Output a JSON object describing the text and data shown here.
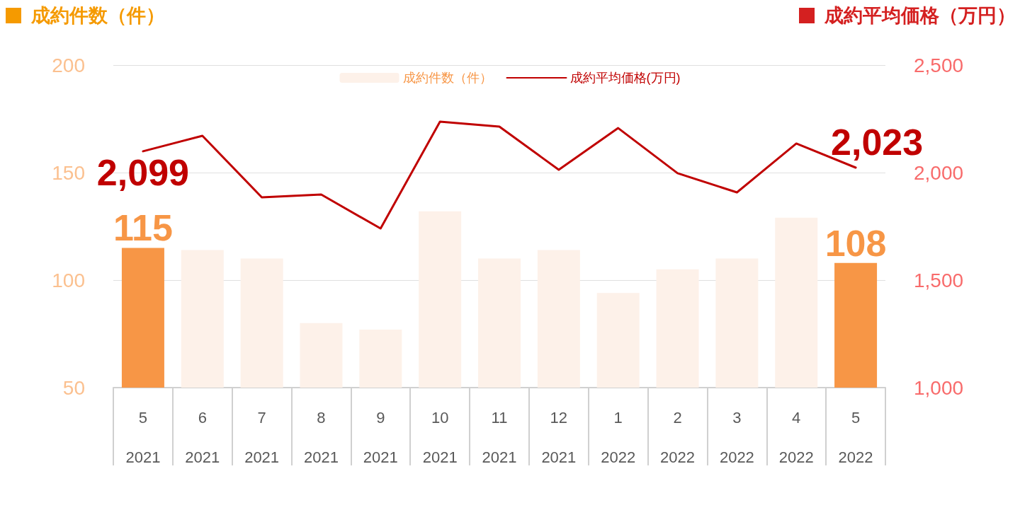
{
  "chart_data": {
    "type": "bar",
    "ylabel": "成約件数（件）",
    "y2label": "成約平均価格（万円）",
    "categories": [
      "5\n2021",
      "6\n2021",
      "7\n2021",
      "8\n2021",
      "9\n2021",
      "10\n2021",
      "11\n2021",
      "12\n2021",
      "1\n2022",
      "2\n2022",
      "3\n2022",
      "4\n2022",
      "5\n2022"
    ],
    "series": [
      {
        "name": "成約件数（件）",
        "color": "#fdf1e9",
        "colors": [
          "#f79646",
          "#fdf1e9",
          "#fdf1e9",
          "#fdf1e9",
          "#fdf1e9",
          "#fdf1e9",
          "#fdf1e9",
          "#fdf1e9",
          "#fdf1e9",
          "#fdf1e9",
          "#fdf1e9",
          "#fdf1e9",
          "#f79646"
        ],
        "values": [
          115,
          114,
          110,
          80,
          77,
          132,
          110,
          114,
          94,
          105,
          110,
          129,
          108
        ],
        "value_labels": [
          "115",
          null,
          null,
          null,
          null,
          null,
          null,
          null,
          null,
          null,
          null,
          null,
          "108"
        ]
      },
      {
        "type": "line",
        "name": "成約平均価格(万円)",
        "color": "#c00000",
        "axis": "y2",
        "values": [
          2099,
          2171,
          1885,
          1898,
          1740,
          2237,
          2214,
          2013,
          2207,
          1997,
          1908,
          2135,
          2023
        ],
        "value_labels": [
          "2,099",
          null,
          null,
          null,
          null,
          null,
          null,
          null,
          null,
          null,
          null,
          null,
          "2,023"
        ]
      }
    ],
    "ylim": [
      50,
      200
    ],
    "yticks": [
      50,
      100,
      150,
      200
    ],
    "y2lim": [
      1000,
      2500
    ],
    "y2ticks": [
      {
        "value": 1000,
        "label": "1,000"
      },
      {
        "value": 1500,
        "label": "1,500"
      },
      {
        "value": 2000,
        "label": "2,000"
      },
      {
        "value": 2500,
        "label": "2,500"
      }
    ],
    "grid": "y",
    "legend": "top",
    "marker": "none",
    "line_style": "solid"
  }
}
